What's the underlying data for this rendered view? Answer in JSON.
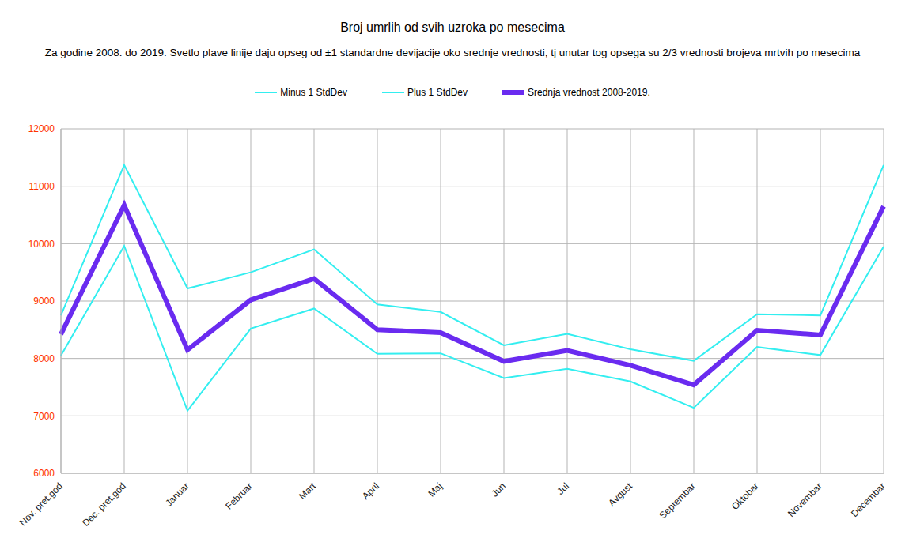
{
  "chart_data": {
    "type": "line",
    "title": "Broj umrlih od svih uzroka po mesecima",
    "subtitle": "Za godine 2008. do 2019. Svetlo plave linije daju opseg  od ±1 standardne devijacije oko srednje vrednosti, tj unutar tog opsega su 2/3 vrednosti brojeva mrtvih po mesecima",
    "categories": [
      "Nov. pret.god",
      "Dec. pret.god",
      "Januar",
      "Februar",
      "Mart",
      "April",
      "Maj",
      "Jun",
      "Jul",
      "Avgust",
      "Septembar",
      "Oktobar",
      "Novembar",
      "Decembar"
    ],
    "series": [
      {
        "name": "Minus 1 StdDev",
        "color": "#33eef0",
        "values": [
          8050,
          9960,
          7090,
          8520,
          8870,
          8080,
          8090,
          7660,
          7820,
          7600,
          7140,
          8200,
          8060,
          9950
        ]
      },
      {
        "name": "Plus 1 StdDev",
        "color": "#33eef0",
        "values": [
          8750,
          11370,
          9220,
          9500,
          9900,
          8940,
          8810,
          8230,
          8430,
          8160,
          7960,
          8770,
          8750,
          11370
        ]
      },
      {
        "name": "Srednja vrednost 2008-2019.",
        "color": "#6a2bf0",
        "values": [
          8420,
          10670,
          8150,
          9020,
          9390,
          8500,
          8450,
          7950,
          8140,
          7880,
          7540,
          8490,
          8410,
          10650
        ]
      }
    ],
    "ylim": [
      6000,
      12000
    ],
    "yticks": [
      6000,
      7000,
      8000,
      9000,
      10000,
      11000,
      12000
    ],
    "grid": true
  }
}
